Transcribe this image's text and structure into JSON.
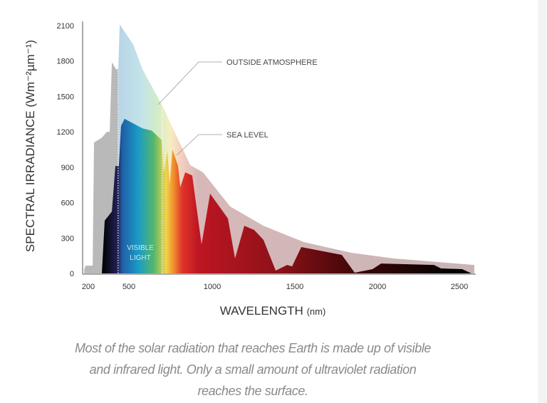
{
  "chart_data": {
    "type": "area",
    "xlabel": "WAVELENGTH",
    "xlabel_unit": "(nm)",
    "ylabel": "SPECTRAL IRRADIANCE (Wm⁻²µm⁻¹)",
    "x_ticks": [
      200,
      500,
      1000,
      1500,
      2000,
      2500
    ],
    "y_ticks": [
      0,
      300,
      600,
      900,
      1200,
      1500,
      1800,
      2100
    ],
    "xlim": [
      170,
      2600
    ],
    "ylim": [
      0,
      2100
    ],
    "grid": false,
    "visible_range": [
      420,
      700
    ],
    "visible_label": [
      "VISIBLE",
      "LIGHT"
    ],
    "series": [
      {
        "name": "OUTSIDE ATMOSPHERE",
        "points": [
          [
            170,
            36
          ],
          [
            180,
            66
          ],
          [
            232,
            66
          ],
          [
            242,
            1110
          ],
          [
            300,
            1150
          ],
          [
            337,
            1200
          ],
          [
            358,
            1200
          ],
          [
            374,
            1790
          ],
          [
            405,
            1730
          ],
          [
            421,
            1730
          ],
          [
            432,
            2110
          ],
          [
            526,
            1940
          ],
          [
            581,
            1730
          ],
          [
            697,
            1430
          ],
          [
            868,
            917
          ],
          [
            944,
            857
          ],
          [
            1108,
            567
          ],
          [
            1310,
            404
          ],
          [
            1556,
            265
          ],
          [
            1841,
            175
          ],
          [
            2099,
            127
          ],
          [
            2591,
            72
          ]
        ]
      },
      {
        "name": "SEA LEVEL",
        "points": [
          [
            300,
            0
          ],
          [
            321,
            447
          ],
          [
            374,
            525
          ],
          [
            400,
            910
          ],
          [
            426,
            910
          ],
          [
            442,
            1250
          ],
          [
            468,
            1310
          ],
          [
            581,
            1230
          ],
          [
            637,
            1210
          ],
          [
            697,
            1130
          ],
          [
            709,
            850
          ],
          [
            731,
            1040
          ],
          [
            744,
            750
          ],
          [
            761,
            1050
          ],
          [
            795,
            910
          ],
          [
            808,
            730
          ],
          [
            838,
            857
          ],
          [
            880,
            830
          ],
          [
            936,
            247
          ],
          [
            987,
            676
          ],
          [
            1095,
            465
          ],
          [
            1138,
            127
          ],
          [
            1194,
            404
          ],
          [
            1254,
            368
          ],
          [
            1310,
            284
          ],
          [
            1384,
            24
          ],
          [
            1453,
            72
          ],
          [
            1483,
            60
          ],
          [
            1539,
            223
          ],
          [
            1784,
            157
          ],
          [
            1862,
            6
          ],
          [
            1970,
            36
          ],
          [
            2022,
            84
          ],
          [
            2345,
            72
          ],
          [
            2388,
            42
          ],
          [
            2517,
            36
          ],
          [
            2573,
            0
          ]
        ]
      }
    ],
    "colors": {
      "uv_outside": "#b9b9b9",
      "ir_outside": "#cbb6b7",
      "sea_level_ir": "#b5121b",
      "sea_level_far_ir": "#000000"
    }
  },
  "caption": {
    "lines": [
      "Most of the solar radiation that reaches Earth is made up of visible",
      "and infrared light. Only a small amount of ultraviolet radiation",
      "reaches the surface."
    ]
  }
}
